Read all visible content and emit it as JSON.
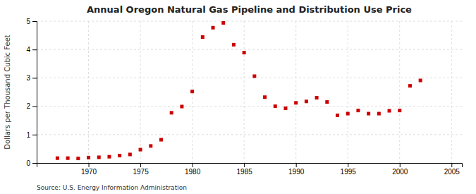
{
  "chart_data": {
    "type": "scatter",
    "title": "Annual Oregon Natural Gas Pipeline and Distribution Use Price",
    "y_label": "Dollars per Thousand Cubic Feet",
    "annotations": [
      "Source: U.S. Energy Information Administration"
    ],
    "color": "#cc0000",
    "marker": "square",
    "grid": true,
    "xlim": [
      1965,
      2006
    ],
    "ylim": [
      0,
      5
    ],
    "xticks": [
      1970,
      1975,
      1980,
      1985,
      1990,
      1995,
      2000,
      2005
    ],
    "yticks": [
      0,
      1,
      2,
      3,
      4,
      5
    ],
    "x": [
      1967,
      1968,
      1969,
      1970,
      1971,
      1972,
      1973,
      1974,
      1975,
      1976,
      1977,
      1978,
      1979,
      1980,
      1981,
      1982,
      1983,
      1984,
      1985,
      1986,
      1987,
      1988,
      1989,
      1990,
      1991,
      1992,
      1993,
      1994,
      1995,
      1996,
      1997,
      1998,
      1999,
      2000,
      2001,
      2002
    ],
    "values": [
      0.17,
      0.17,
      0.16,
      0.19,
      0.2,
      0.22,
      0.26,
      0.3,
      0.47,
      0.6,
      0.82,
      1.77,
      1.99,
      2.52,
      4.44,
      4.77,
      4.94,
      4.17,
      3.89,
      3.06,
      2.32,
      2.0,
      1.93,
      2.12,
      2.17,
      2.3,
      2.15,
      1.68,
      1.74,
      1.85,
      1.74,
      1.74,
      1.84,
      1.85,
      2.72,
      2.91
    ]
  }
}
